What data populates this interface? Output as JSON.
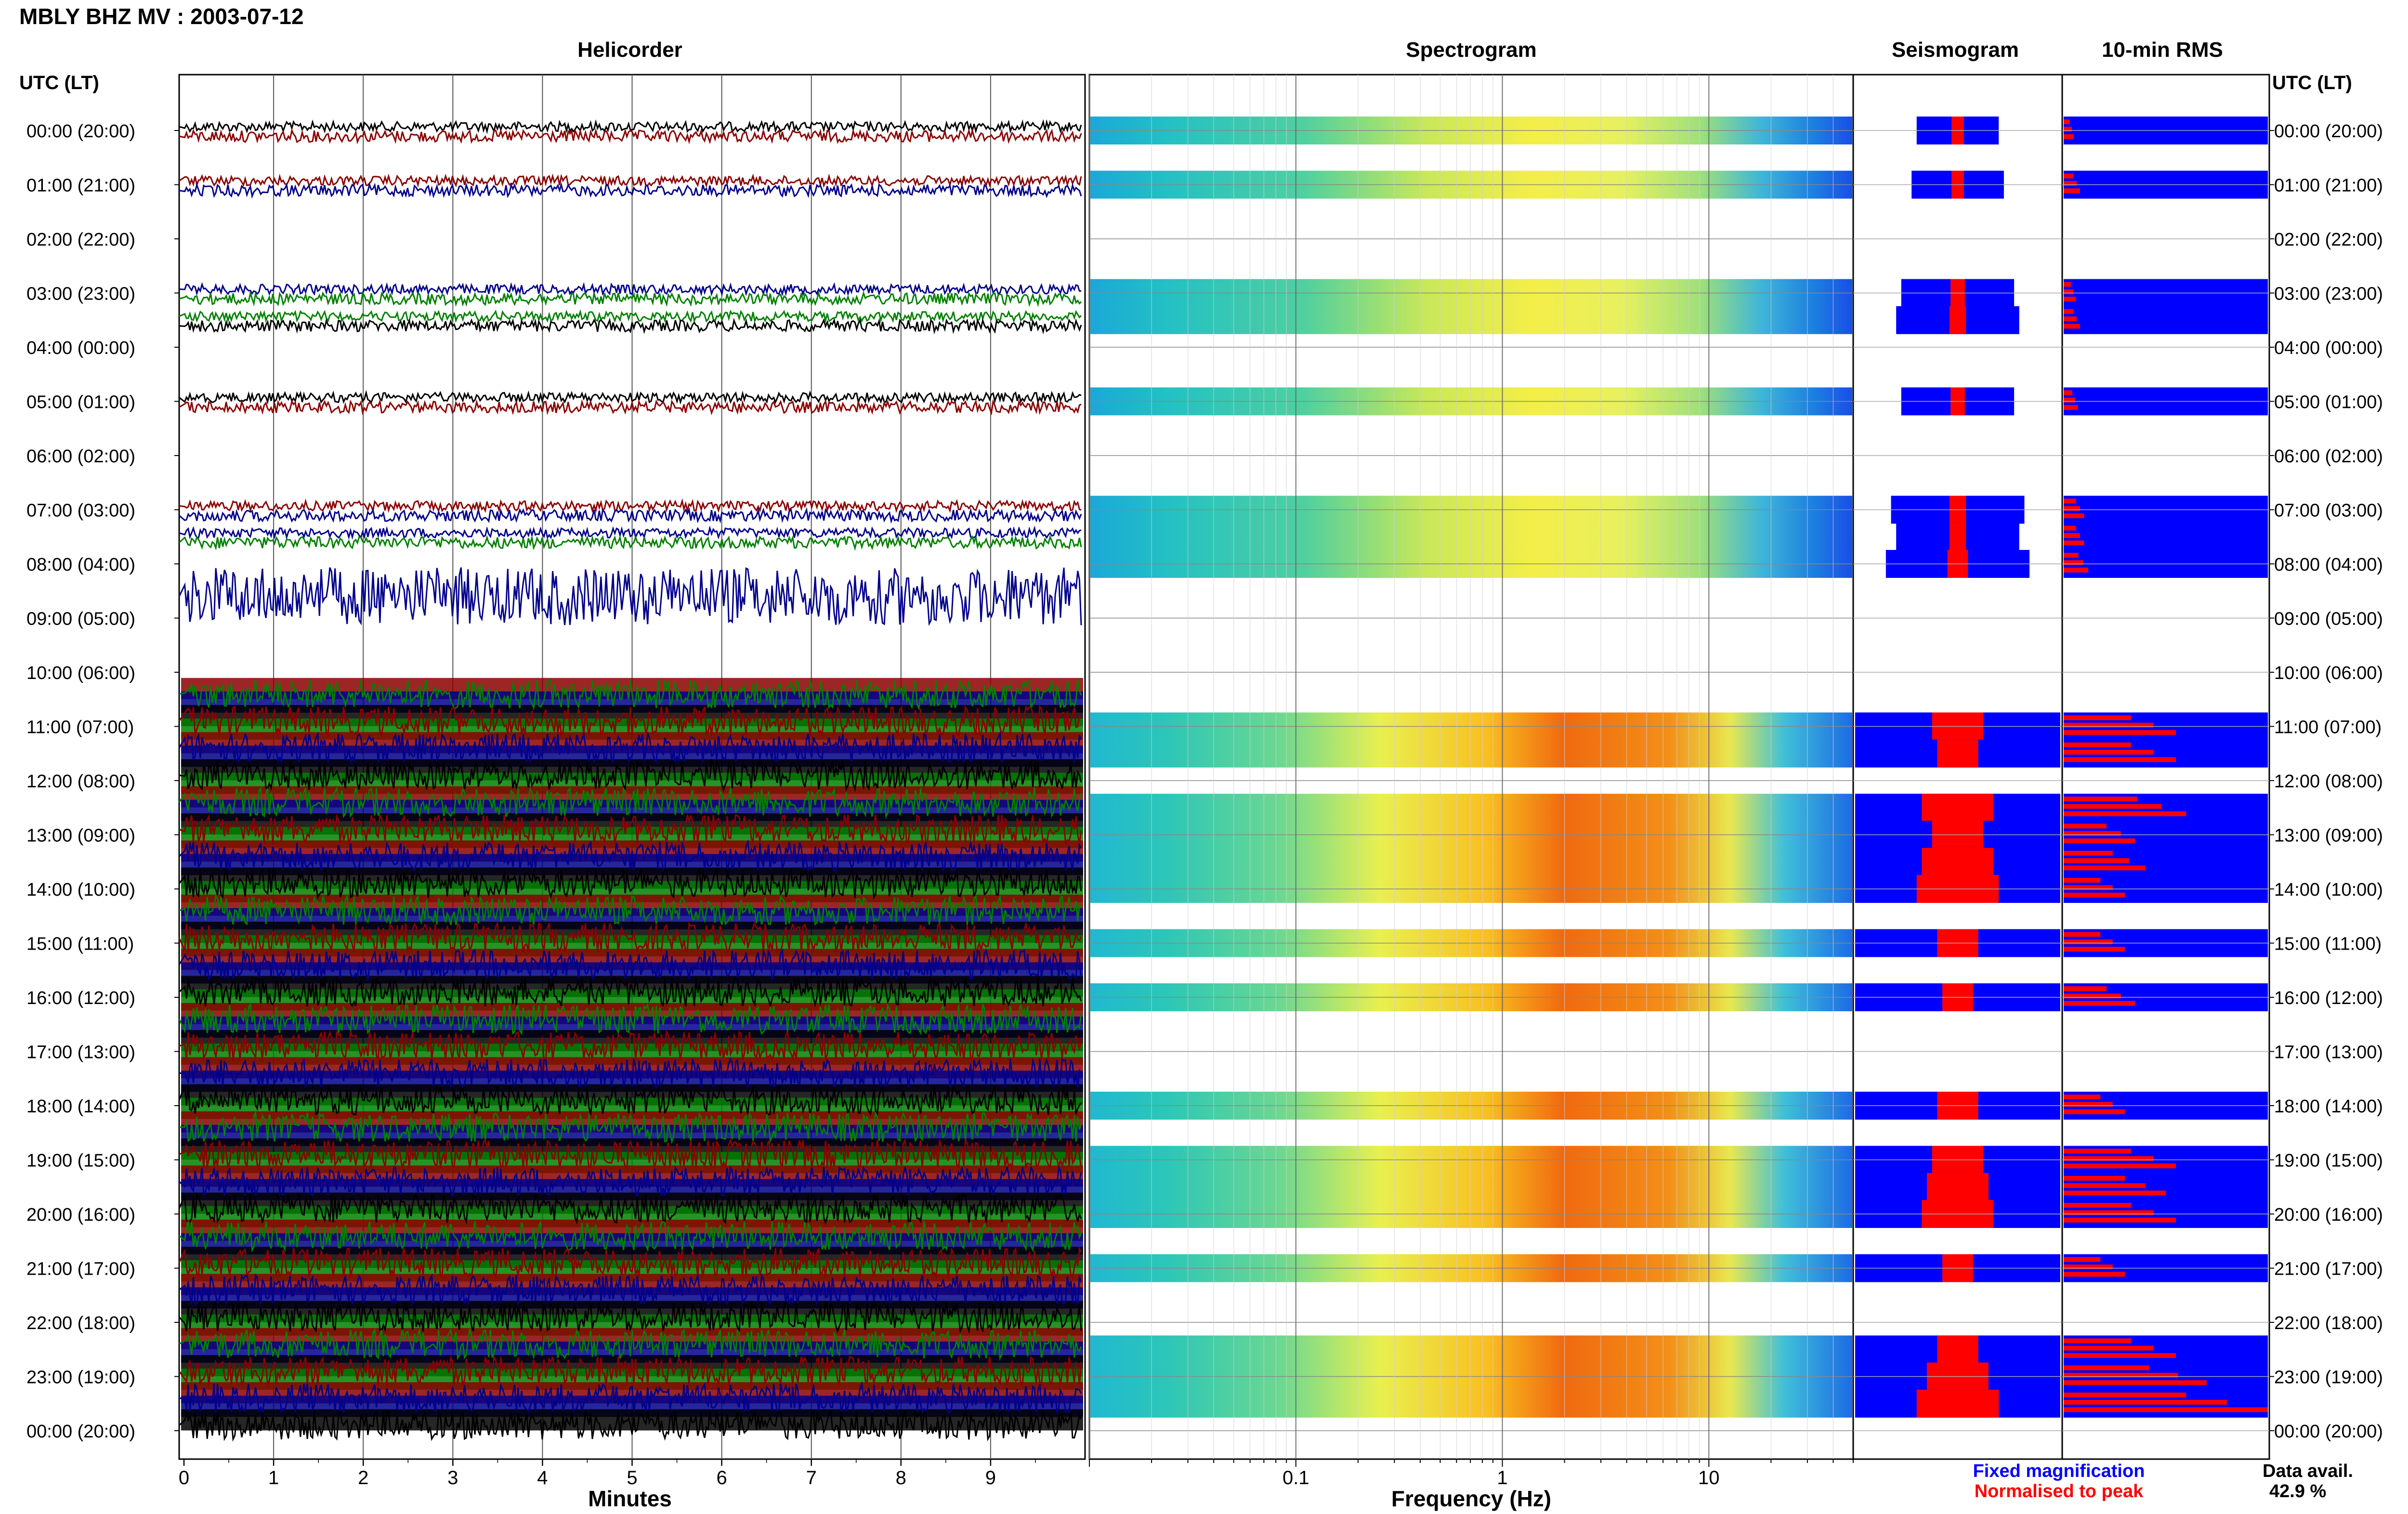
{
  "figure": {
    "title": "MBLY BHZ MV : 2003-07-12",
    "panels": [
      "Helicorder",
      "Spectrogram",
      "Seismogram",
      "10-min RMS"
    ],
    "time_axis_header": "UTC (LT)",
    "legend": {
      "fixed_label": "Fixed magnification",
      "normalised_label": "Normalised to peak",
      "fixed_color": "#0000ff",
      "normalised_color": "#ff0000"
    },
    "data_availability": {
      "label": "Data avail.",
      "value": "42.9 %"
    }
  },
  "chart_data": {
    "type": "heatmap",
    "station": "MBLY BHZ MV",
    "date": "2003-07-12",
    "time_labels": [
      "00:00 (20:00)",
      "01:00 (21:00)",
      "02:00 (22:00)",
      "03:00 (23:00)",
      "04:00 (00:00)",
      "05:00 (01:00)",
      "06:00 (02:00)",
      "07:00 (03:00)",
      "08:00 (04:00)",
      "09:00 (05:00)",
      "10:00 (06:00)",
      "11:00 (07:00)",
      "12:00 (08:00)",
      "13:00 (09:00)",
      "14:00 (10:00)",
      "15:00 (11:00)",
      "16:00 (12:00)",
      "17:00 (13:00)",
      "18:00 (14:00)",
      "19:00 (15:00)",
      "20:00 (16:00)",
      "21:00 (17:00)",
      "22:00 (18:00)",
      "23:00 (19:00)",
      "00:00 (20:00)"
    ],
    "helicorder": {
      "xlabel": "Minutes",
      "xlim": [
        0,
        10
      ],
      "xticks": [
        0,
        1,
        2,
        3,
        4,
        5,
        6,
        7,
        8,
        9
      ],
      "trace_colors": [
        "#000000",
        "#8b0000",
        "#00008b",
        "#008000"
      ]
    },
    "spectrogram": {
      "xlabel": "Frequency (Hz)",
      "xscale": "log",
      "xlim": [
        0.01,
        50
      ],
      "xtick_labels": [
        "0.1",
        "1",
        "10"
      ]
    },
    "data_hours": [
      0,
      1,
      3,
      3.5,
      5,
      7,
      7.5,
      8,
      11,
      11.5,
      12.5,
      13,
      13.5,
      14,
      15,
      16,
      18,
      19,
      19.5,
      20,
      21,
      22.5,
      23,
      23.5
    ],
    "seismogram": {
      "fixed_magnification": [
        0.4,
        0.45,
        0.55,
        0.6,
        0.55,
        0.65,
        0.6,
        0.7,
        1.0,
        1.0,
        1.0,
        1.0,
        1.0,
        1.0,
        1.0,
        1.0,
        1.0,
        1.0,
        1.0,
        1.0,
        1.0,
        1.0,
        1.0,
        1.0
      ],
      "normalised_to_peak": [
        0.06,
        0.06,
        0.07,
        0.08,
        0.07,
        0.08,
        0.08,
        0.1,
        0.25,
        0.2,
        0.35,
        0.25,
        0.35,
        0.4,
        0.2,
        0.15,
        0.2,
        0.25,
        0.3,
        0.35,
        0.15,
        0.2,
        0.3,
        0.4
      ]
    },
    "rms_10min": {
      "fixed_magnification": [
        1,
        1,
        1,
        1,
        1,
        1,
        1,
        1,
        1,
        1,
        1,
        1,
        1,
        1,
        1,
        1,
        1,
        1,
        1,
        1,
        1,
        1,
        1,
        1
      ],
      "normalised_to_peak": [
        0.05,
        0.08,
        0.06,
        0.08,
        0.07,
        0.1,
        0.1,
        0.12,
        0.55,
        0.55,
        0.6,
        0.35,
        0.4,
        0.3,
        0.3,
        0.35,
        0.3,
        0.55,
        0.5,
        0.55,
        0.3,
        0.55,
        0.7,
        1.0
      ]
    },
    "data_availability_percent": 42.9
  }
}
